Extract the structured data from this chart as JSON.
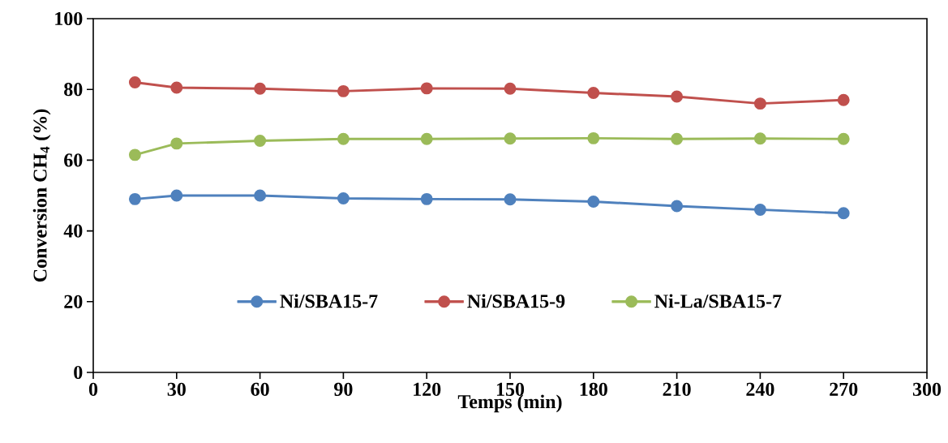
{
  "chart_data": {
    "type": "line",
    "xlabel": "Temps (min)",
    "ylabel": "Conversion CH$_{4}$ (%)",
    "x": [
      15,
      30,
      60,
      90,
      120,
      150,
      180,
      210,
      240,
      270
    ],
    "xlim": [
      0,
      300
    ],
    "xticks": [
      0,
      30,
      60,
      90,
      120,
      150,
      180,
      210,
      240,
      270,
      300
    ],
    "ylim": [
      0,
      100
    ],
    "yticks": [
      0,
      20,
      40,
      60,
      80,
      100
    ],
    "grid": false,
    "legend": "bottom",
    "marker": "circle",
    "line_style": "solid",
    "series": [
      {
        "name": "Ni/SBA15-7",
        "color": "#4f81bd",
        "values": [
          49,
          50,
          50,
          49.2,
          49,
          48.9,
          48.3,
          47,
          46,
          45
        ]
      },
      {
        "name": "Ni/SBA15-9",
        "color": "#c0504d",
        "values": [
          82,
          80.5,
          80.2,
          79.5,
          80.3,
          80.2,
          79,
          78,
          76,
          77
        ]
      },
      {
        "name": "Ni-La/SBA15-7",
        "color": "#9bbb59",
        "values": [
          61.5,
          64.7,
          65.5,
          66,
          66,
          66.1,
          66.2,
          66,
          66.1,
          66
        ]
      }
    ]
  }
}
